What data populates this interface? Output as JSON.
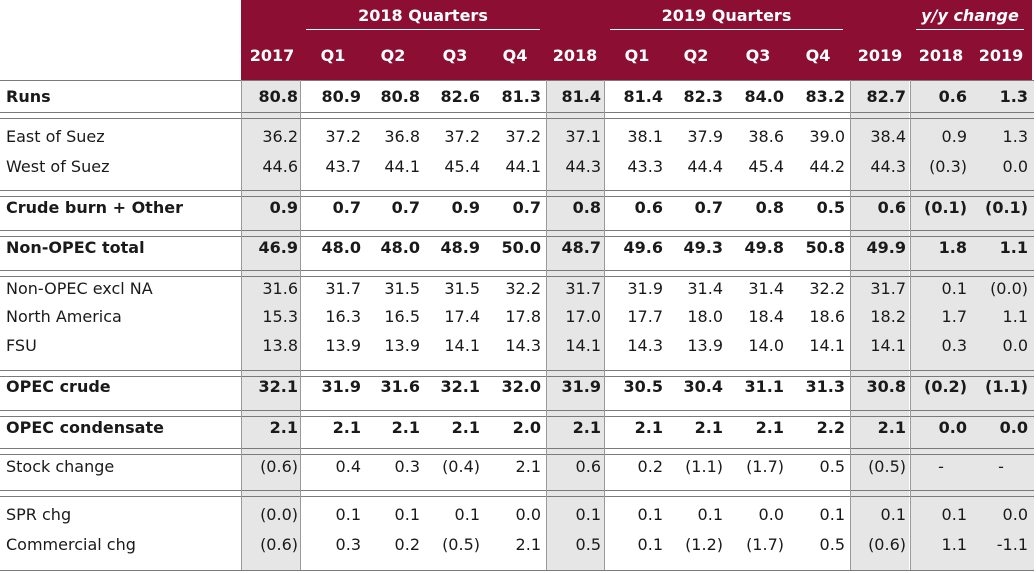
{
  "header": {
    "group_2018": "2018 Quarters",
    "group_2019": "2019 Quarters",
    "group_yy": "y/y change",
    "columns": [
      "2017",
      "Q1",
      "Q2",
      "Q3",
      "Q4",
      "2018",
      "Q1",
      "Q2",
      "Q3",
      "Q4",
      "2019",
      "2018",
      "2019"
    ]
  },
  "rows": [
    {
      "label": "Runs",
      "bold": true,
      "values": [
        "80.8",
        "80.9",
        "80.8",
        "82.6",
        "81.3",
        "81.4",
        "81.4",
        "82.3",
        "84.0",
        "83.2",
        "82.7",
        "0.6",
        "1.3"
      ]
    },
    {
      "label": "East of Suez",
      "bold": false,
      "values": [
        "36.2",
        "37.2",
        "36.8",
        "37.2",
        "37.2",
        "37.1",
        "38.1",
        "37.9",
        "38.6",
        "39.0",
        "38.4",
        "0.9",
        "1.3"
      ]
    },
    {
      "label": "West of Suez",
      "bold": false,
      "values": [
        "44.6",
        "43.7",
        "44.1",
        "45.4",
        "44.1",
        "44.3",
        "43.3",
        "44.4",
        "45.4",
        "44.2",
        "44.3",
        "(0.3)",
        "0.0"
      ]
    },
    {
      "label": "Crude burn + Other",
      "bold": true,
      "values": [
        "0.9",
        "0.7",
        "0.7",
        "0.9",
        "0.7",
        "0.8",
        "0.6",
        "0.7",
        "0.8",
        "0.5",
        "0.6",
        "(0.1)",
        "(0.1)"
      ]
    },
    {
      "label": "Non-OPEC total",
      "bold": true,
      "values": [
        "46.9",
        "48.0",
        "48.0",
        "48.9",
        "50.0",
        "48.7",
        "49.6",
        "49.3",
        "49.8",
        "50.8",
        "49.9",
        "1.8",
        "1.1"
      ]
    },
    {
      "label": "Non-OPEC excl NA",
      "bold": false,
      "values": [
        "31.6",
        "31.7",
        "31.5",
        "31.5",
        "32.2",
        "31.7",
        "31.9",
        "31.4",
        "31.4",
        "32.2",
        "31.7",
        "0.1",
        "(0.0)"
      ]
    },
    {
      "label": "North America",
      "bold": false,
      "values": [
        "15.3",
        "16.3",
        "16.5",
        "17.4",
        "17.8",
        "17.0",
        "17.7",
        "18.0",
        "18.4",
        "18.6",
        "18.2",
        "1.7",
        "1.1"
      ]
    },
    {
      "label": "FSU",
      "bold": false,
      "values": [
        "13.8",
        "13.9",
        "13.9",
        "14.1",
        "14.3",
        "14.1",
        "14.3",
        "13.9",
        "14.0",
        "14.1",
        "14.1",
        "0.3",
        "0.0"
      ]
    },
    {
      "label": "OPEC crude",
      "bold": true,
      "values": [
        "32.1",
        "31.9",
        "31.6",
        "32.1",
        "32.0",
        "31.9",
        "30.5",
        "30.4",
        "31.1",
        "31.3",
        "30.8",
        "(0.2)",
        "(1.1)"
      ]
    },
    {
      "label": "OPEC condensate",
      "bold": true,
      "values": [
        "2.1",
        "2.1",
        "2.1",
        "2.1",
        "2.0",
        "2.1",
        "2.1",
        "2.1",
        "2.1",
        "2.2",
        "2.1",
        "0.0",
        "0.0"
      ]
    },
    {
      "label": "Stock change",
      "bold": false,
      "values": [
        "(0.6)",
        "0.4",
        "0.3",
        "(0.4)",
        "2.1",
        "0.6",
        "0.2",
        "(1.1)",
        "(1.7)",
        "0.5",
        "(0.5)",
        "-",
        "-"
      ]
    },
    {
      "label": "SPR chg",
      "bold": false,
      "values": [
        "(0.0)",
        "0.1",
        "0.1",
        "0.1",
        "0.0",
        "0.1",
        "0.1",
        "0.1",
        "0.0",
        "0.1",
        "0.1",
        "0.1",
        "0.0"
      ]
    },
    {
      "label": "Commercial chg",
      "bold": false,
      "values": [
        "(0.6)",
        "0.3",
        "0.2",
        "(0.5)",
        "2.1",
        "0.5",
        "0.1",
        "(1.2)",
        "(1.7)",
        "0.5",
        "(0.6)",
        "1.1",
        "-1.1"
      ]
    }
  ],
  "colors": {
    "header": "#8c0f33",
    "shade": "#e6e6e6"
  }
}
